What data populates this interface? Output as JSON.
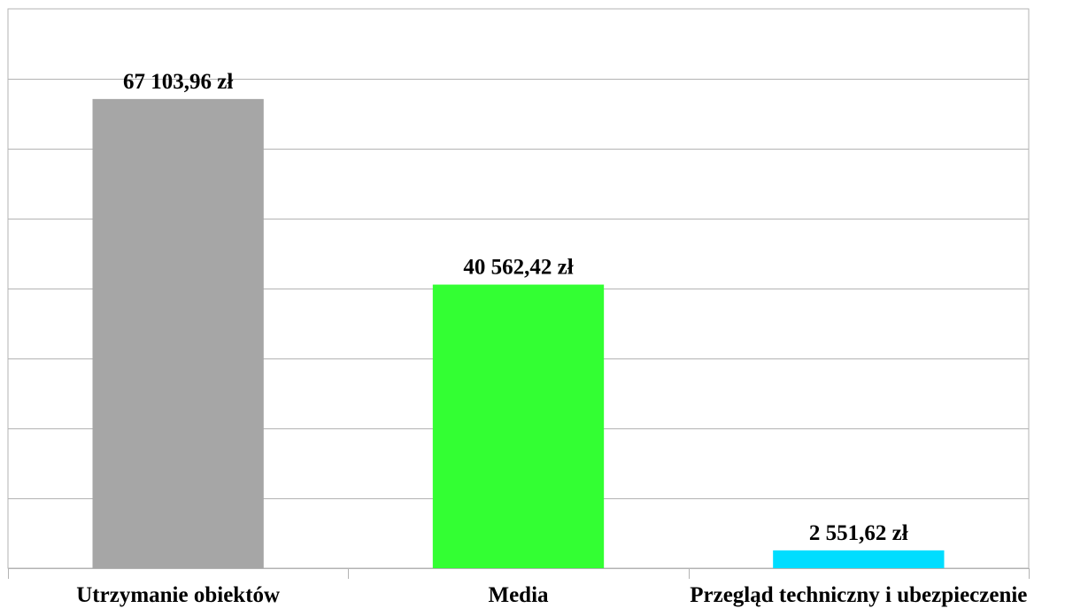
{
  "chart_data": {
    "type": "bar",
    "categories": [
      "Utrzymanie obiektów",
      "Media",
      "Przegląd techniczny i ubezpieczenie"
    ],
    "values": [
      67103.96,
      40562.42,
      2551.62
    ],
    "data_labels": [
      "67 103,96 zł",
      "40 562,42 zł",
      "2 551,62 zł"
    ],
    "colors": [
      "#a6a6a6",
      "#33ff33",
      "#00ddff"
    ],
    "ylim": [
      0,
      80000
    ],
    "y_gridline_step": 10000,
    "grid": true,
    "gridline_color": "#b3b3b3",
    "title": "",
    "xlabel": "",
    "ylabel": ""
  }
}
